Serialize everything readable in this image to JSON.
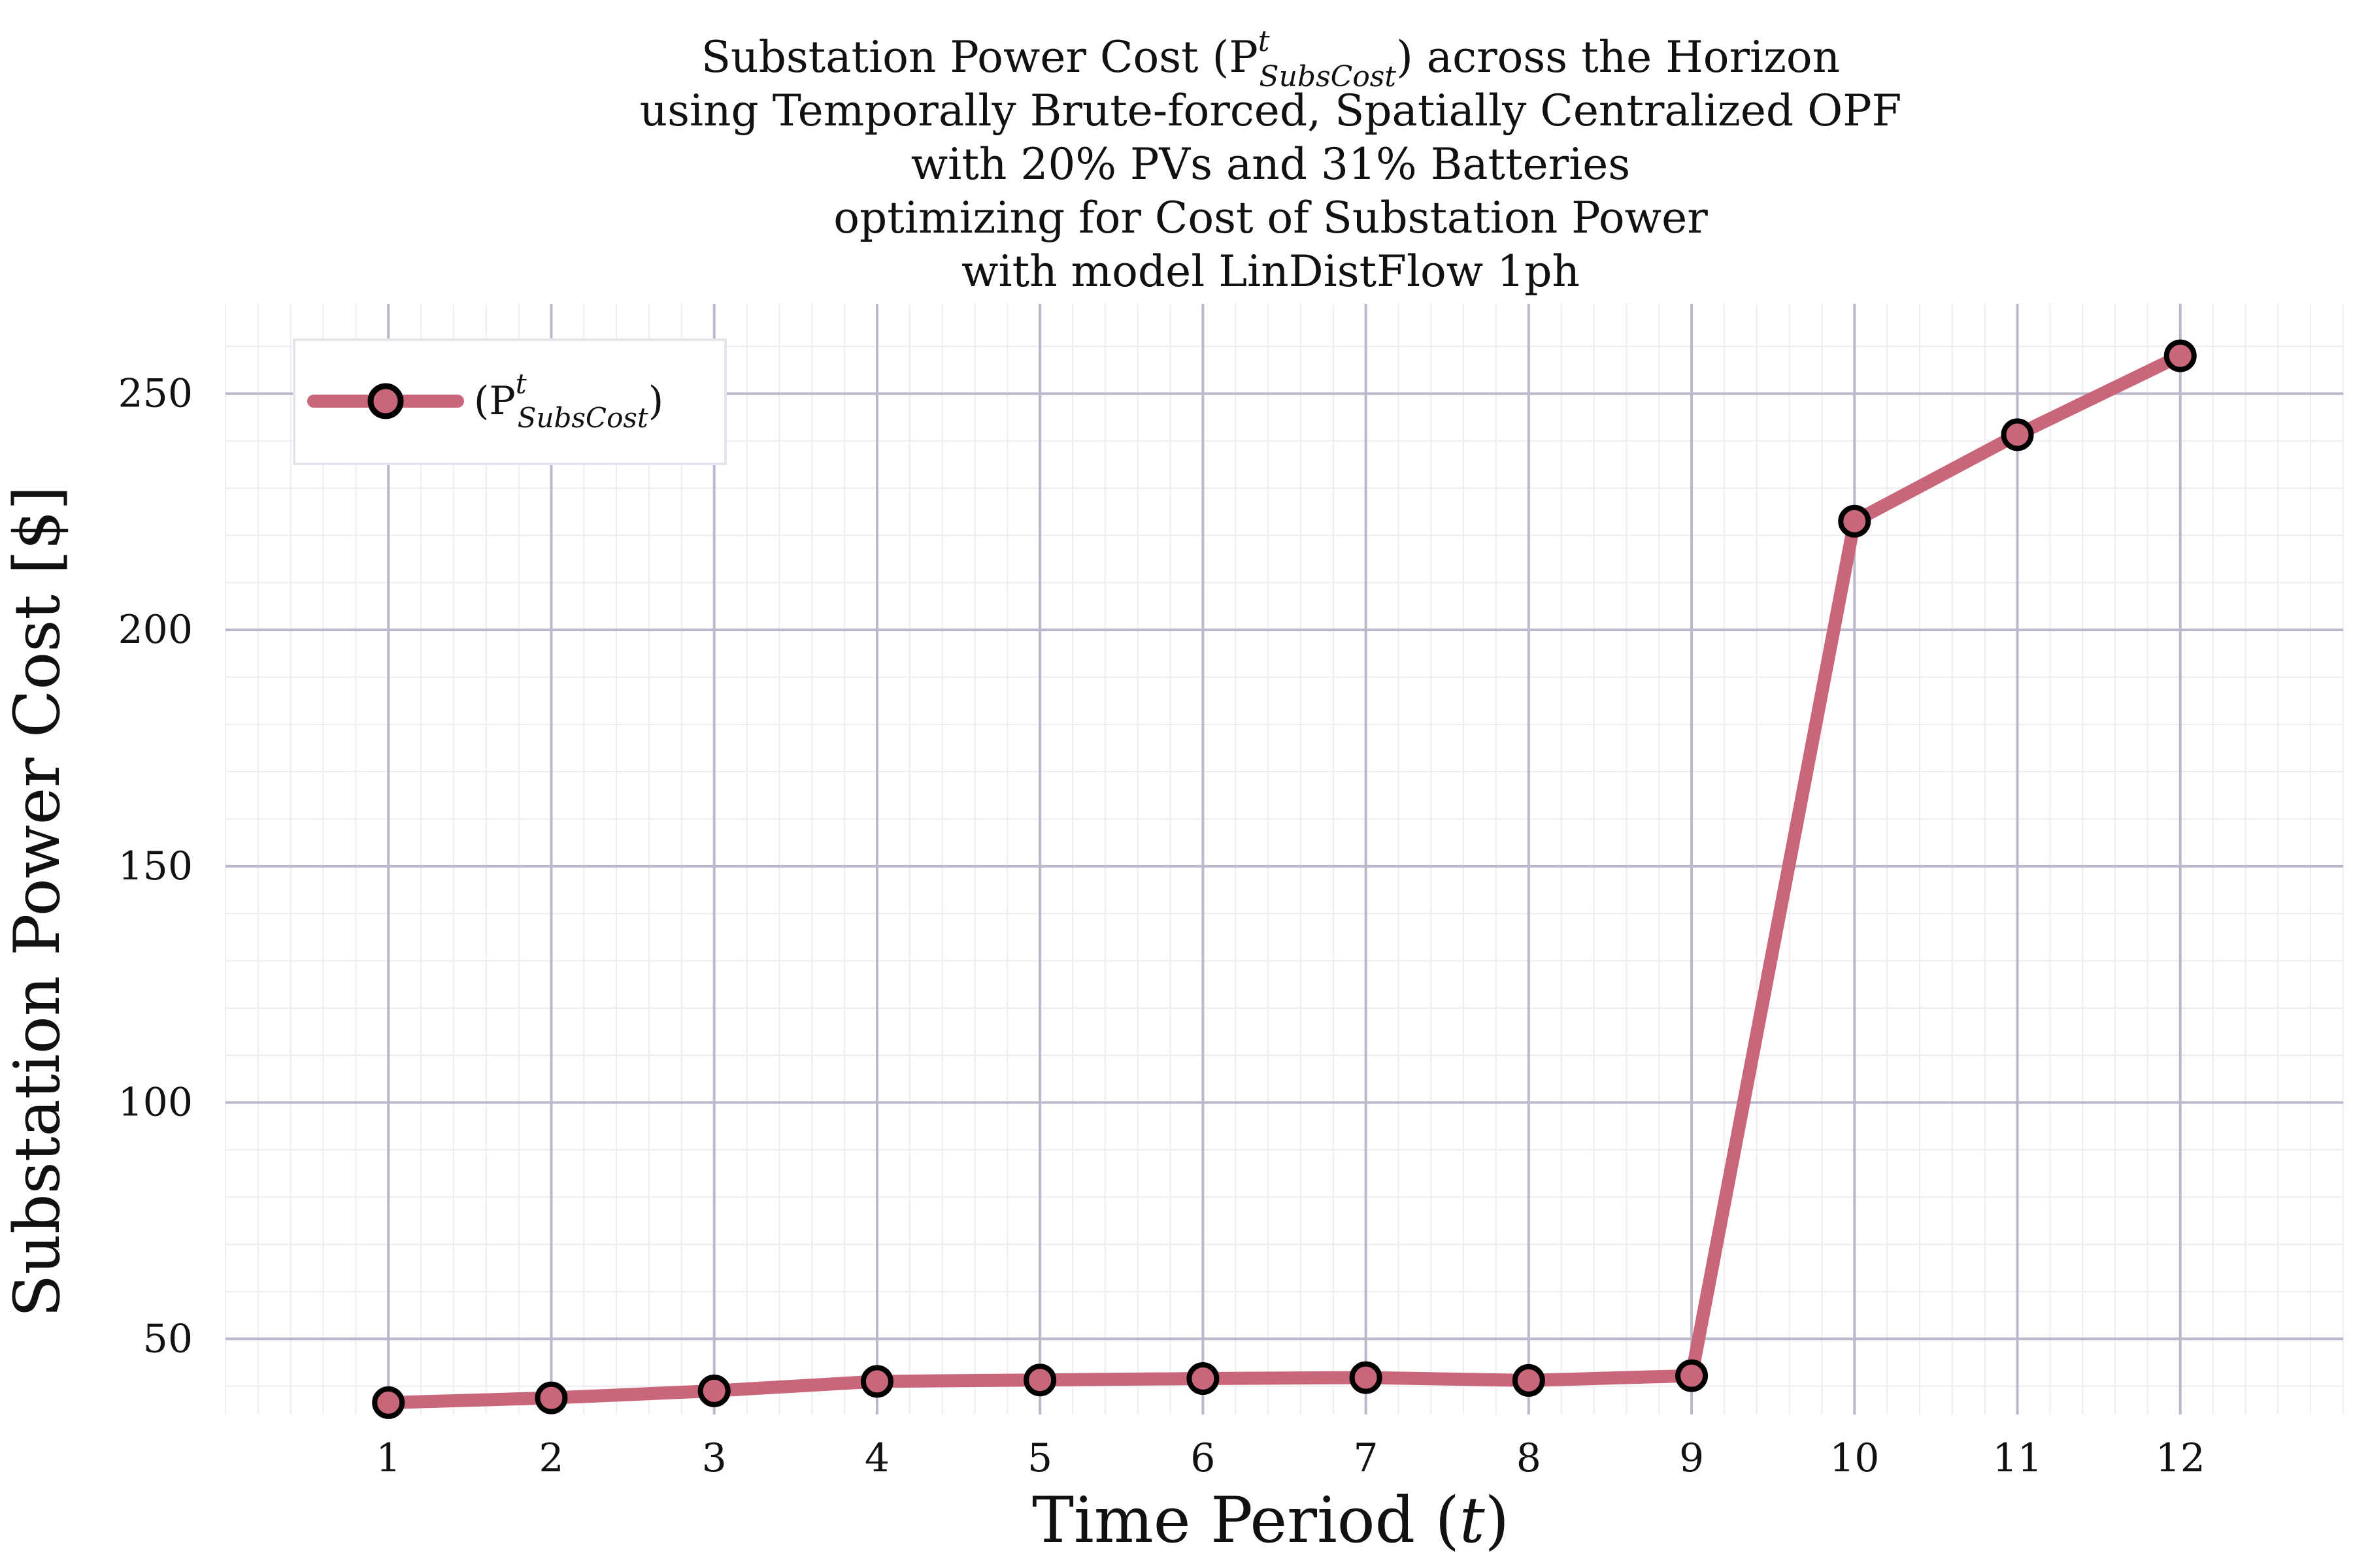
{
  "chart_data": {
    "type": "line",
    "title_lines": [
      "Substation Power Cost (P",
      "using Temporally Brute-forced, Spatially Centralized OPF",
      "with 20% PVs and 31% Batteries",
      "optimizing for Cost of Substation Power",
      "with model LinDistFlow 1ph"
    ],
    "title_symbol": {
      "superscript": "t",
      "subscript": "SubsCost",
      "suffix": ") across the Horizon"
    },
    "xlabel": {
      "text": "Time Period (",
      "var": "t",
      "close": ")"
    },
    "ylabel": "Substation Power Cost [$]",
    "x": [
      1,
      2,
      3,
      4,
      5,
      6,
      7,
      8,
      9,
      10,
      11,
      12
    ],
    "xticks": [
      "1",
      "2",
      "3",
      "4",
      "5",
      "6",
      "7",
      "8",
      "9",
      "10",
      "11",
      "12"
    ],
    "yticks": [
      50,
      100,
      150,
      200,
      250
    ],
    "ytick_labels": [
      "50",
      "100",
      "150",
      "200",
      "250"
    ],
    "xlim": [
      0.0,
      13.0
    ],
    "ylim": [
      34.0,
      269.0
    ],
    "grid": true,
    "legend_position": "top-left",
    "series": [
      {
        "name": "(P",
        "name_superscript": "t",
        "name_subscript": "SubsCost",
        "name_close": ")",
        "values": [
          36.5,
          37.5,
          39.0,
          41.0,
          41.3,
          41.6,
          41.8,
          41.2,
          42.2,
          223.0,
          241.3,
          258.0
        ],
        "color": "#c9667a",
        "marker_fill": "#c9667a",
        "marker_edge": "#000000"
      }
    ],
    "colors": {
      "major_grid": "#b9b9cb",
      "minor_grid": "#ececf2",
      "background": "#ffffff"
    }
  }
}
